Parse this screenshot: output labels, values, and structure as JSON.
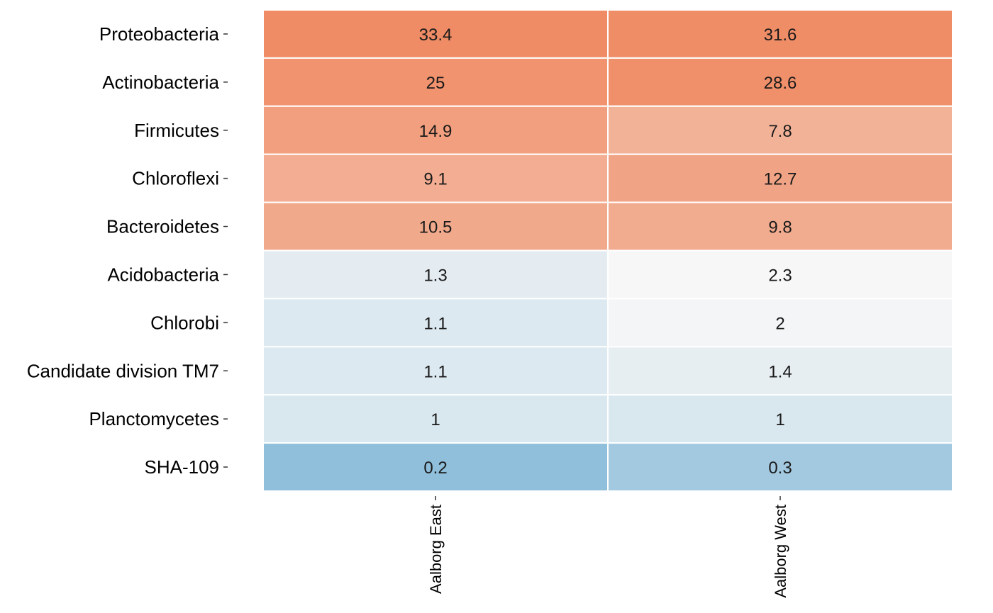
{
  "chart_data": {
    "type": "heatmap",
    "rows": [
      "Proteobacteria",
      "Actinobacteria",
      "Firmicutes",
      "Chloroflexi",
      "Bacteroidetes",
      "Acidobacteria",
      "Chlorobi",
      "Candidate division TM7",
      "Planctomycetes",
      "SHA-109"
    ],
    "columns": [
      "Aalborg East",
      "Aalborg West"
    ],
    "values": [
      [
        33.4,
        31.6
      ],
      [
        25,
        28.6
      ],
      [
        14.9,
        7.8
      ],
      [
        9.1,
        12.7
      ],
      [
        10.5,
        9.8
      ],
      [
        1.3,
        2.3
      ],
      [
        1.1,
        2
      ],
      [
        1.1,
        1.4
      ],
      [
        1,
        1
      ],
      [
        0.2,
        0.3
      ]
    ],
    "color_scale": {
      "low": "#67a9cf",
      "mid": "#f7f7f7",
      "high": "#ef8a62",
      "scale": "log"
    },
    "legend": "none",
    "grid": false
  }
}
